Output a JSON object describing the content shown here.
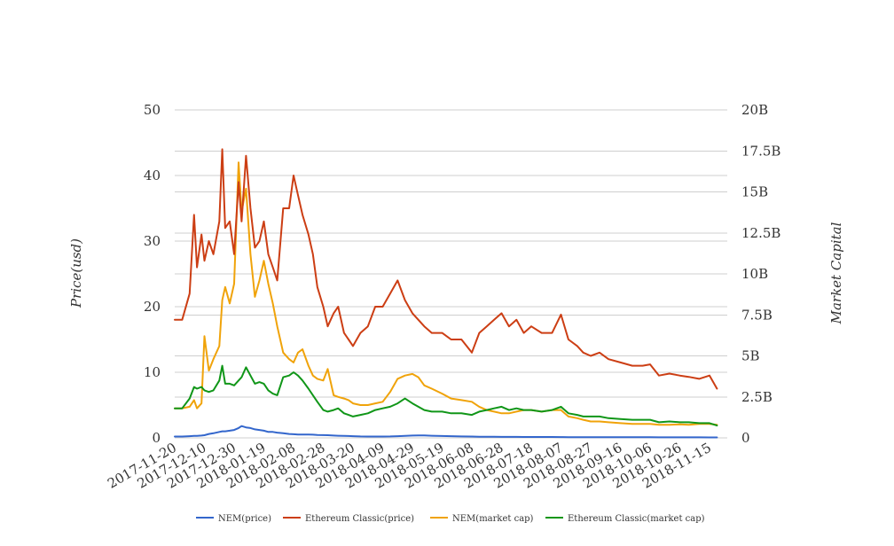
{
  "chart_data": {
    "type": "line",
    "ylabel": "Price(usd)",
    "y2label": "Market Capital",
    "ylim": [
      0,
      50
    ],
    "y2lim": [
      0,
      20000000000
    ],
    "yticks": [
      "0",
      "10",
      "20",
      "30",
      "40",
      "50"
    ],
    "y2ticks": [
      "0",
      "2.5B",
      "5B",
      "7.5B",
      "10B",
      "12.5B",
      "15B",
      "17.5B",
      "20B"
    ],
    "x_tick_labels": [
      "2017-11-20",
      "2017-12-10",
      "2017-12-30",
      "2018-01-19",
      "2018-02-08",
      "2018-02-28",
      "2018-03-20",
      "2018-04-09",
      "2018-04-29",
      "2018-05-19",
      "2018-06-08",
      "2018-06-28",
      "2018-07-18",
      "2018-08-07",
      "2018-08-27",
      "2018-09-16",
      "2018-10-06",
      "2018-10-26",
      "2018-11-15"
    ],
    "x_dates": [
      "2017-11-20",
      "2017-11-25",
      "2017-11-30",
      "2017-12-03",
      "2017-12-05",
      "2017-12-08",
      "2017-12-10",
      "2017-12-13",
      "2017-12-16",
      "2017-12-20",
      "2017-12-22",
      "2017-12-24",
      "2017-12-27",
      "2017-12-30",
      "2018-01-02",
      "2018-01-04",
      "2018-01-07",
      "2018-01-10",
      "2018-01-13",
      "2018-01-16",
      "2018-01-19",
      "2018-01-22",
      "2018-01-25",
      "2018-01-28",
      "2018-02-01",
      "2018-02-05",
      "2018-02-08",
      "2018-02-11",
      "2018-02-14",
      "2018-02-18",
      "2018-02-21",
      "2018-02-24",
      "2018-02-28",
      "2018-03-03",
      "2018-03-07",
      "2018-03-10",
      "2018-03-14",
      "2018-03-17",
      "2018-03-20",
      "2018-03-25",
      "2018-03-30",
      "2018-04-04",
      "2018-04-09",
      "2018-04-14",
      "2018-04-19",
      "2018-04-24",
      "2018-04-29",
      "2018-05-03",
      "2018-05-07",
      "2018-05-12",
      "2018-05-19",
      "2018-05-25",
      "2018-06-01",
      "2018-06-08",
      "2018-06-13",
      "2018-06-18",
      "2018-06-23",
      "2018-06-28",
      "2018-07-03",
      "2018-07-08",
      "2018-07-13",
      "2018-07-18",
      "2018-07-25",
      "2018-08-01",
      "2018-08-07",
      "2018-08-12",
      "2018-08-18",
      "2018-08-22",
      "2018-08-27",
      "2018-09-02",
      "2018-09-08",
      "2018-09-16",
      "2018-09-24",
      "2018-10-01",
      "2018-10-06",
      "2018-10-12",
      "2018-10-19",
      "2018-10-26",
      "2018-11-01",
      "2018-11-08",
      "2018-11-15",
      "2018-11-20"
    ],
    "series": [
      {
        "name": "NEM(price)",
        "color": "#3366cc",
        "axis": "left",
        "values": [
          0.2,
          0.2,
          0.25,
          0.3,
          0.3,
          0.35,
          0.4,
          0.6,
          0.7,
          0.9,
          1.0,
          1.0,
          1.1,
          1.2,
          1.5,
          1.8,
          1.6,
          1.5,
          1.3,
          1.2,
          1.1,
          0.9,
          0.9,
          0.8,
          0.7,
          0.6,
          0.55,
          0.5,
          0.5,
          0.5,
          0.48,
          0.45,
          0.42,
          0.4,
          0.35,
          0.32,
          0.3,
          0.28,
          0.25,
          0.22,
          0.2,
          0.2,
          0.2,
          0.22,
          0.25,
          0.3,
          0.35,
          0.38,
          0.36,
          0.32,
          0.28,
          0.25,
          0.22,
          0.2,
          0.18,
          0.17,
          0.16,
          0.15,
          0.15,
          0.15,
          0.14,
          0.14,
          0.13,
          0.13,
          0.12,
          0.11,
          0.1,
          0.1,
          0.1,
          0.09,
          0.09,
          0.09,
          0.09,
          0.09,
          0.09,
          0.08,
          0.08,
          0.08,
          0.08,
          0.08,
          0.07,
          0.07
        ]
      },
      {
        "name": "Ethereum Classic(price)",
        "color": "#cc3e14",
        "axis": "left",
        "values": [
          18,
          18,
          22,
          34,
          26,
          31,
          27,
          30,
          28,
          33,
          44,
          32,
          33,
          28,
          39,
          33,
          43,
          35,
          29,
          30,
          33,
          28,
          26,
          24,
          35,
          35,
          40,
          37,
          34,
          31,
          28,
          23,
          20,
          17,
          19,
          20,
          16,
          15,
          14,
          16,
          17,
          20,
          20,
          22,
          24,
          21,
          19,
          18,
          17,
          16,
          16,
          15,
          15,
          13,
          16,
          17,
          18,
          19,
          17,
          18,
          16,
          17,
          16,
          16,
          18.8,
          15,
          14,
          13,
          12.5,
          13,
          12,
          11.5,
          11,
          11,
          11.2,
          9.5,
          9.8,
          9.5,
          9.3,
          9.0,
          9.5,
          7.5
        ]
      },
      {
        "name": "NEM(market cap)",
        "color": "#f0a30a",
        "axis": "right",
        "values": [
          1800000000,
          1800000000,
          1900000000,
          2300000000,
          1800000000,
          2100000000,
          6200000000,
          4100000000,
          4800000000,
          5600000000,
          8400000000,
          9200000000,
          8200000000,
          9400000000,
          16800000000,
          13800000000,
          15200000000,
          11200000000,
          8600000000,
          9600000000,
          10800000000,
          9400000000,
          8200000000,
          6800000000,
          5200000000,
          4800000000,
          4600000000,
          5200000000,
          5400000000,
          4400000000,
          3800000000,
          3600000000,
          3500000000,
          4200000000,
          2600000000,
          2500000000,
          2400000000,
          2300000000,
          2100000000,
          2000000000,
          2000000000,
          2100000000,
          2200000000,
          2800000000,
          3600000000,
          3800000000,
          3900000000,
          3700000000,
          3200000000,
          3000000000,
          2700000000,
          2400000000,
          2300000000,
          2200000000,
          1900000000,
          1700000000,
          1600000000,
          1500000000,
          1500000000,
          1600000000,
          1700000000,
          1700000000,
          1600000000,
          1700000000,
          1700000000,
          1300000000,
          1200000000,
          1100000000,
          1000000000,
          1000000000,
          950000000,
          900000000,
          850000000,
          850000000,
          850000000,
          800000000,
          800000000,
          820000000,
          800000000,
          850000000,
          850000000,
          800000000
        ]
      },
      {
        "name": "Ethereum Classic(market cap)",
        "color": "#109618",
        "axis": "right",
        "values": [
          1800000000,
          1800000000,
          2400000000,
          3100000000,
          3000000000,
          3100000000,
          2900000000,
          2800000000,
          2900000000,
          3500000000,
          4400000000,
          3300000000,
          3300000000,
          3200000000,
          3500000000,
          3700000000,
          4300000000,
          3800000000,
          3300000000,
          3400000000,
          3300000000,
          2900000000,
          2700000000,
          2600000000,
          3700000000,
          3800000000,
          4000000000,
          3800000000,
          3500000000,
          3000000000,
          2600000000,
          2200000000,
          1700000000,
          1600000000,
          1700000000,
          1800000000,
          1500000000,
          1400000000,
          1300000000,
          1400000000,
          1500000000,
          1700000000,
          1800000000,
          1900000000,
          2100000000,
          2400000000,
          2100000000,
          1900000000,
          1700000000,
          1600000000,
          1600000000,
          1500000000,
          1500000000,
          1400000000,
          1600000000,
          1700000000,
          1800000000,
          1900000000,
          1700000000,
          1800000000,
          1700000000,
          1700000000,
          1600000000,
          1700000000,
          1900000000,
          1500000000,
          1400000000,
          1300000000,
          1300000000,
          1300000000,
          1200000000,
          1150000000,
          1100000000,
          1100000000,
          1100000000,
          950000000,
          1000000000,
          950000000,
          950000000,
          900000000,
          900000000,
          750000000
        ]
      }
    ],
    "legend_position": "bottom",
    "grid": true
  }
}
